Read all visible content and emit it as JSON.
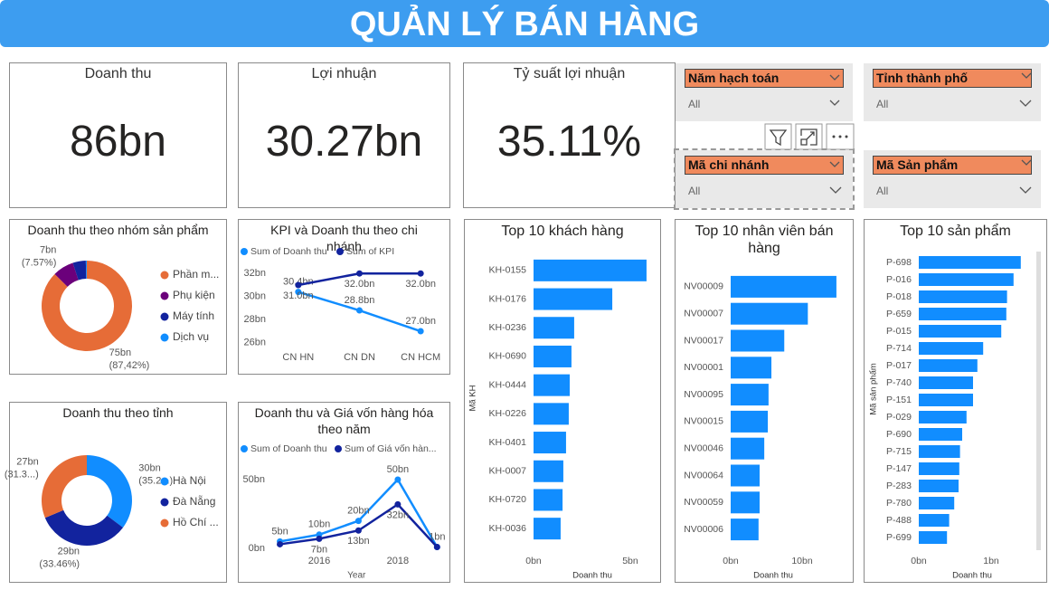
{
  "header": {
    "title": "QUẢN LÝ BÁN HÀNG"
  },
  "cards": [
    {
      "label": "Doanh thu",
      "value": "86bn"
    },
    {
      "label": "Lợi nhuận",
      "value": "30.27bn"
    },
    {
      "label": "Tỷ suất lợi nhuận",
      "value": "35.11%"
    }
  ],
  "slicers": [
    {
      "label": "Năm hạch toán",
      "selection": "All"
    },
    {
      "label": "Tỉnh thành phố",
      "selection": "All"
    },
    {
      "label": "Mã chi nhánh",
      "selection": "All"
    },
    {
      "label": "Mã Sản phẩm",
      "selection": "All"
    }
  ],
  "chart_data": [
    {
      "type": "donut",
      "title": "Doanh thu theo nhóm sản phẩm",
      "categories": [
        "Phần m...",
        "Phụ kiện",
        "Máy tính",
        "Dịch vụ"
      ],
      "values": [
        75.18,
        6.51,
        4.0,
        0.31
      ],
      "colors": [
        "#e66c37",
        "#6b007b",
        "#12239e",
        "#118dff"
      ],
      "value_labels": [
        "75bn",
        "7bn",
        null,
        null
      ],
      "percent_labels": [
        "(87,42%)",
        "(7.57%)",
        null,
        null
      ]
    },
    {
      "type": "line",
      "title": "KPI và Doanh thu theo chi nhánh",
      "categories": [
        "CN HN",
        "CN DN",
        "CN HCM"
      ],
      "series": [
        {
          "name": "Sum of Doanh thu",
          "color": "#118dff",
          "values": [
            30.4,
            28.8,
            27.0
          ],
          "value_labels": [
            "30.4bn",
            "28.8bn",
            "27.0bn"
          ]
        },
        {
          "name": "Sum of KPI",
          "color": "#12239e",
          "values": [
            31.0,
            32.0,
            32.0
          ],
          "value_labels": [
            "31.0bn",
            "32.0bn",
            "32.0bn"
          ]
        }
      ],
      "ylim": [
        25.2,
        32.8
      ],
      "yticks": [
        {
          "value": 26,
          "label": "26bn"
        },
        {
          "value": 28,
          "label": "28bn"
        },
        {
          "value": 30,
          "label": "30bn"
        },
        {
          "value": 32,
          "label": "32bn"
        }
      ]
    },
    {
      "type": "donut",
      "title": "Doanh thu theo tỉnh",
      "categories": [
        "Hà Nội",
        "Đà Nẵng",
        "Hồ Chí ..."
      ],
      "values": [
        30.3,
        28.8,
        26.9
      ],
      "colors": [
        "#118dff",
        "#12239e",
        "#e66c37"
      ],
      "value_labels": [
        "30bn",
        "29bn",
        "27bn"
      ],
      "percent_labels": [
        "(35.2...)",
        "(33.46%)",
        "(31.3...)"
      ]
    },
    {
      "type": "line",
      "title": "Doanh thu và Giá vốn hàng hóa theo năm",
      "x": [
        2015,
        2016,
        2017,
        2018,
        2019
      ],
      "series": [
        {
          "name": "Sum of Doanh thu",
          "color": "#118dff",
          "values": [
            5,
            10,
            20,
            50,
            1
          ],
          "value_labels": [
            "5bn",
            "10bn",
            "20bn",
            "50bn",
            "1bn"
          ]
        },
        {
          "name": "Sum of Giá vốn hàn...",
          "color": "#12239e",
          "values": [
            3,
            7,
            13,
            32,
            1
          ],
          "value_labels": [
            null,
            "7bn",
            "13bn",
            "32bn",
            null
          ]
        }
      ],
      "xlim": [
        2014.7,
        2019.2
      ],
      "xticks": [
        2016,
        2018
      ],
      "x_label": "Year",
      "ylim": [
        0,
        55
      ],
      "yticks": [
        {
          "value": 0,
          "label": "0bn"
        },
        {
          "value": 50,
          "label": "50bn"
        }
      ]
    },
    {
      "type": "hbar",
      "title": "Top 10 khách hàng",
      "categories": [
        "KH-0155",
        "KH-0176",
        "KH-0236",
        "KH-0690",
        "KH-0444",
        "KH-0226",
        "KH-0401",
        "KH-0007",
        "KH-0720",
        "KH-0036"
      ],
      "values": [
        5.84,
        4.07,
        2.1,
        1.96,
        1.87,
        1.82,
        1.68,
        1.54,
        1.5,
        1.4
      ],
      "color": "#118dff",
      "xlim": [
        0,
        6.1
      ],
      "xticks": [
        {
          "value": 0,
          "label": "0bn"
        },
        {
          "value": 5,
          "label": "5bn"
        }
      ],
      "x_label": "Doanh thu",
      "y_label": "Mã KH"
    },
    {
      "type": "hbar",
      "title": "Top 10 nhân viên bán hàng",
      "categories": [
        "NV00009",
        "NV00007",
        "NV00017",
        "NV00001",
        "NV00095",
        "NV00015",
        "NV00046",
        "NV00064",
        "NV00059",
        "NV00006"
      ],
      "values": [
        14.8,
        10.8,
        7.5,
        5.7,
        5.3,
        5.2,
        4.7,
        4.05,
        4.05,
        3.9
      ],
      "color": "#118dff",
      "xlim": [
        0,
        16
      ],
      "xticks": [
        {
          "value": 0,
          "label": "0bn"
        },
        {
          "value": 10,
          "label": "10bn"
        }
      ],
      "x_label": "Doanh thu"
    },
    {
      "type": "hbar",
      "title": "Top 10 sản phẩm",
      "categories": [
        "P-698",
        "P-016",
        "P-018",
        "P-659",
        "P-015",
        "P-714",
        "P-017",
        "P-740",
        "P-151",
        "P-029",
        "P-690",
        "P-715",
        "P-147",
        "P-283",
        "P-780",
        "P-488",
        "P-699"
      ],
      "values": [
        1.41,
        1.31,
        1.22,
        1.21,
        1.14,
        0.89,
        0.81,
        0.75,
        0.75,
        0.66,
        0.6,
        0.57,
        0.56,
        0.55,
        0.49,
        0.42,
        0.39
      ],
      "color": "#118dff",
      "xlim": [
        0,
        1.45
      ],
      "xticks": [
        {
          "value": 0,
          "label": "0bn"
        },
        {
          "value": 1,
          "label": "1bn"
        }
      ],
      "x_label": "Doanh thu",
      "y_label": "Mã sản phẩm"
    }
  ]
}
